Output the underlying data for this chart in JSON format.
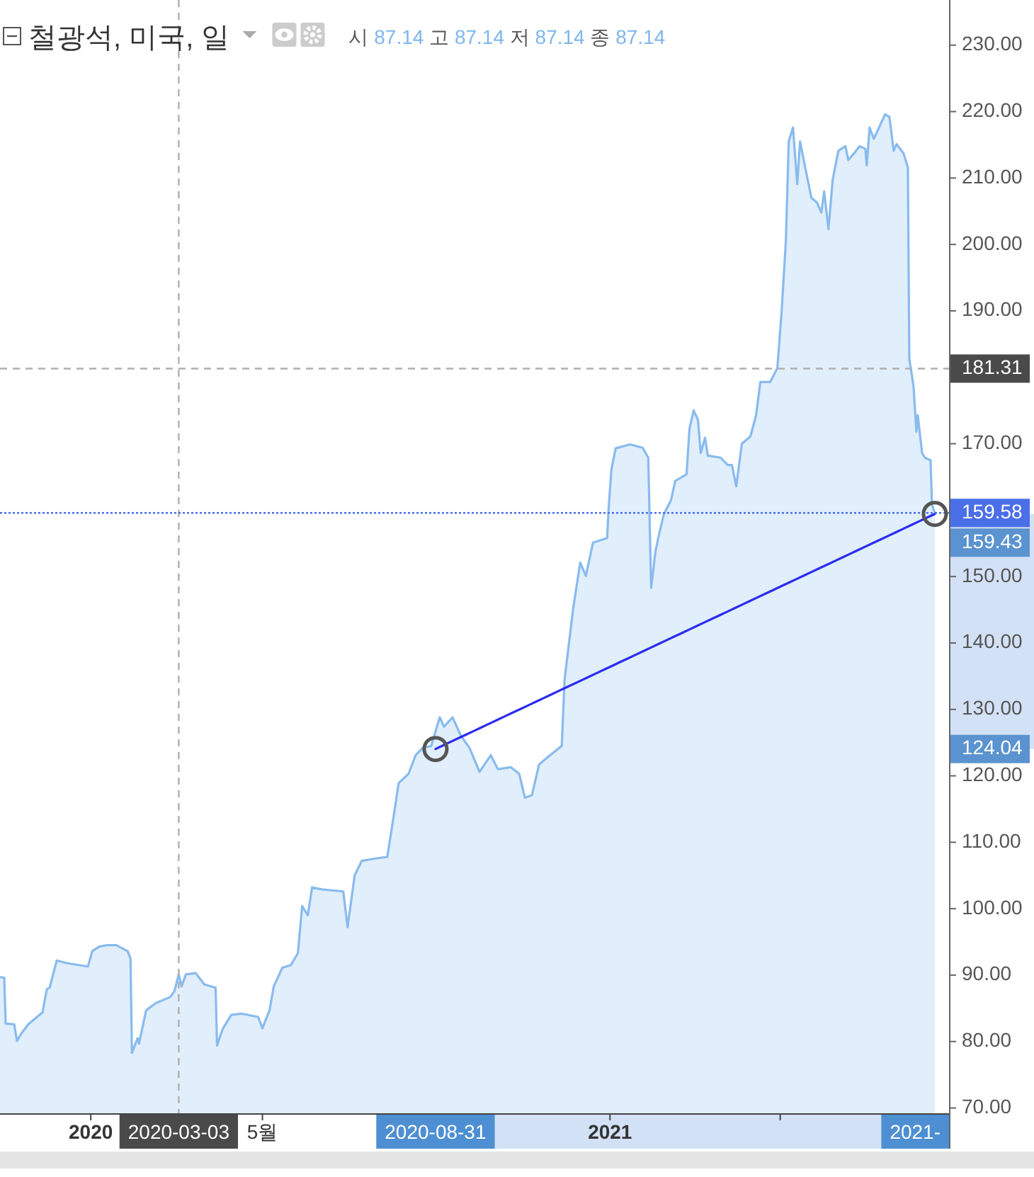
{
  "chart_data": {
    "type": "area",
    "title": "철광석, 미국, 일",
    "subtitle": "시 87.14 고 87.14 저 87.14 종 87.14",
    "x": [
      "2019-10-29",
      "2019-11-01",
      "2019-11-02",
      "2019-11-08",
      "2019-11-10",
      "2019-11-13",
      "2019-11-18",
      "2019-11-28",
      "2019-12-01",
      "2019-12-03",
      "2019-12-08",
      "2019-12-15",
      "2019-12-30",
      "2020-01-02",
      "2020-01-07",
      "2020-01-12",
      "2020-01-19",
      "2020-01-27",
      "2020-01-29",
      "2020-01-30",
      "2020-02-03",
      "2020-02-04",
      "2020-02-09",
      "2020-02-16",
      "2020-02-26",
      "2020-02-29",
      "2020-03-03",
      "2020-03-05",
      "2020-03-08",
      "2020-03-15",
      "2020-03-21",
      "2020-03-29",
      "2020-03-30",
      "2020-04-03",
      "2020-04-09",
      "2020-04-16",
      "2020-04-28",
      "2020-05-01",
      "2020-05-06",
      "2020-05-09",
      "2020-05-15",
      "2020-05-21",
      "2020-05-26",
      "2020-05-29",
      "2020-06-02",
      "2020-06-05",
      "2020-06-12",
      "2020-06-27",
      "2020-06-30",
      "2020-07-05",
      "2020-07-10",
      "2020-07-18",
      "2020-07-28",
      "2020-08-02",
      "2020-08-05",
      "2020-08-12",
      "2020-08-17",
      "2020-08-22",
      "2020-08-28",
      "2020-09-01",
      "2020-09-03",
      "2020-09-06",
      "2020-09-12",
      "2020-09-18",
      "2020-09-24",
      "2020-10-01",
      "2020-10-09",
      "2020-10-14",
      "2020-10-23",
      "2020-10-29",
      "2020-11-02",
      "2020-11-07",
      "2020-11-12",
      "2020-11-18",
      "2020-11-28",
      "2020-11-30",
      "2020-12-06",
      "2020-12-11",
      "2020-12-15",
      "2020-12-20",
      "2020-12-30",
      "2020-12-31",
      "2021-01-02",
      "2021-01-05",
      "2021-01-15",
      "2021-01-24",
      "2021-01-28",
      "2021-01-30",
      "2021-02-02",
      "2021-02-04",
      "2021-02-08",
      "2021-02-13",
      "2021-02-16",
      "2021-02-24",
      "2021-02-26",
      "2021-03-01",
      "2021-03-04",
      "2021-03-06",
      "2021-03-09",
      "2021-03-11",
      "2021-03-20",
      "2021-03-25",
      "2021-03-28",
      "2021-03-31",
      "2021-04-04",
      "2021-04-10",
      "2021-04-14",
      "2021-04-17",
      "2021-04-24",
      "2021-04-29",
      "2021-05-02",
      "2021-05-05",
      "2021-05-07",
      "2021-05-10",
      "2021-05-11",
      "2021-05-13",
      "2021-05-15",
      "2021-05-19",
      "2021-05-23",
      "2021-05-27",
      "2021-05-30",
      "2021-06-01",
      "2021-06-04",
      "2021-06-07",
      "2021-06-11",
      "2021-06-16",
      "2021-06-18",
      "2021-06-22",
      "2021-06-26",
      "2021-06-30",
      "2021-07-01",
      "2021-07-03",
      "2021-07-06",
      "2021-07-09",
      "2021-07-14",
      "2021-07-17",
      "2021-07-20",
      "2021-07-22",
      "2021-07-27",
      "2021-07-30",
      "2021-07-31",
      "2021-08-01",
      "2021-08-03",
      "2021-08-05",
      "2021-08-06",
      "2021-08-09",
      "2021-08-11",
      "2021-08-15",
      "2021-08-16",
      "2021-08-18"
    ],
    "series": [
      {
        "color": "#88bbee",
        "values": [
          89.7,
          89.6,
          82.7,
          82.6,
          80.1,
          81.2,
          82.6,
          84.4,
          87.9,
          88.1,
          92.2,
          91.8,
          91.3,
          93.6,
          94.3,
          94.5,
          94.5,
          93.6,
          92.5,
          78.3,
          80.5,
          79.7,
          84.7,
          85.8,
          86.7,
          87.6,
          90.1,
          88.3,
          90.1,
          90.3,
          88.6,
          88.1,
          79.4,
          81.9,
          84.0,
          84.2,
          83.7,
          82.0,
          84.7,
          88.3,
          91.1,
          91.5,
          93.3,
          100.4,
          99.0,
          103.2,
          102.9,
          102.6,
          97.2,
          105.0,
          107.2,
          107.5,
          107.8,
          114.6,
          118.9,
          120.3,
          123.1,
          124.2,
          124.5,
          127.4,
          128.8,
          127.4,
          128.8,
          126.0,
          124.2,
          120.6,
          123.1,
          121.0,
          121.3,
          120.3,
          116.7,
          117.1,
          121.7,
          122.8,
          124.5,
          134.5,
          145.1,
          152.1,
          150.1,
          155.1,
          155.8,
          160.1,
          166.1,
          169.3,
          169.9,
          169.4,
          167.9,
          148.3,
          153.7,
          155.8,
          159.4,
          161.5,
          164.4,
          165.4,
          172.2,
          175.0,
          173.6,
          168.6,
          170.9,
          168.2,
          167.9,
          166.8,
          166.8,
          163.6,
          170.0,
          171.1,
          174.3,
          179.3,
          179.3,
          181.4,
          189.9,
          200.6,
          215.5,
          217.6,
          214.8,
          209.1,
          215.5,
          211.2,
          207.0,
          206.3,
          204.8,
          208.0,
          202.3,
          209.8,
          214.1,
          214.8,
          212.7,
          213.7,
          214.8,
          214.4,
          211.9,
          217.6,
          215.9,
          217.3,
          219.6,
          219.2,
          214.1,
          215.1,
          213.7,
          211.6,
          182.8,
          181.4,
          178.6,
          171.8,
          174.3,
          168.6,
          167.9,
          167.5,
          160.8,
          159.58
        ]
      },
      {
        "type": "line",
        "color": "#2b2bef",
        "x": [
          "2020-08-31",
          "2021-08-18"
        ],
        "values": [
          124.04,
          159.43
        ]
      },
      {
        "type": "scatter",
        "color": "#555555",
        "marker": "circle",
        "x": [
          "2020-08-31",
          "2021-08-18"
        ],
        "values": [
          124.04,
          159.43
        ]
      }
    ],
    "xlim": [
      "2019-10-29",
      "2021-08-28"
    ],
    "ylim": [
      69.2,
      236.8
    ],
    "xticks": [
      {
        "value": "2020-01-01",
        "label": "2020"
      },
      {
        "value": "2020-05-01",
        "label": "5월"
      },
      {
        "value": "2020-09-01",
        "label": null
      },
      {
        "value": "2021-01-01",
        "label": "2021"
      },
      {
        "value": "2021-05-01",
        "label": null
      }
    ],
    "yticks": [
      {
        "value": 70,
        "label": "70.00"
      },
      {
        "value": 80,
        "label": "80.00"
      },
      {
        "value": 90,
        "label": "90.00"
      },
      {
        "value": 100,
        "label": "100.00"
      },
      {
        "value": 110,
        "label": "110.00"
      },
      {
        "value": 120,
        "label": "120.00"
      },
      {
        "value": 130,
        "label": "130.00"
      },
      {
        "value": 140,
        "label": "140.00"
      },
      {
        "value": 150,
        "label": "150.00"
      },
      {
        "value": 160,
        "label": null
      },
      {
        "value": 170,
        "label": "170.00"
      },
      {
        "value": 180,
        "label": null
      },
      {
        "value": 190,
        "label": "190.00"
      },
      {
        "value": 200,
        "label": "200.00"
      },
      {
        "value": 210,
        "label": "210.00"
      },
      {
        "value": 220,
        "label": "220.00"
      },
      {
        "value": 230,
        "label": "230.00"
      }
    ],
    "ref_lines": [
      {
        "axis": "x",
        "value": "2020-03-03",
        "label": "2020-03-03",
        "line_style": "dashed",
        "color": "#b0b0b0"
      },
      {
        "axis": "y",
        "value": 181.31,
        "label": "181.31",
        "line_style": "dashed",
        "color": "#b0b0b0"
      },
      {
        "axis": "y",
        "value": 159.58,
        "label": "159.58",
        "line_style": "dotted",
        "color": "#4a6fe8"
      }
    ],
    "annotations": [
      "124.04",
      "159.43",
      "2020-08-31",
      "2021-"
    ]
  }
}
